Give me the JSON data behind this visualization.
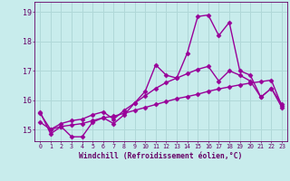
{
  "xlabel": "Windchill (Refroidissement éolien,°C)",
  "bg_color": "#c8ecec",
  "line_color": "#990099",
  "grid_color": "#b0d8d8",
  "text_color": "#660066",
  "x_data": [
    0,
    1,
    2,
    3,
    4,
    5,
    6,
    7,
    8,
    9,
    10,
    11,
    12,
    13,
    14,
    15,
    16,
    17,
    18,
    19,
    20,
    21,
    22,
    23
  ],
  "line1": [
    15.6,
    14.85,
    15.1,
    14.75,
    14.75,
    15.25,
    15.4,
    15.2,
    15.5,
    15.9,
    16.3,
    17.2,
    16.85,
    16.75,
    17.6,
    18.85,
    18.9,
    18.2,
    18.65,
    17.0,
    16.85,
    16.1,
    16.4,
    15.75
  ],
  "line2": [
    15.55,
    15.0,
    15.2,
    15.3,
    15.35,
    15.5,
    15.6,
    15.35,
    15.65,
    15.9,
    16.15,
    16.4,
    16.6,
    16.75,
    16.9,
    17.05,
    17.15,
    16.65,
    17.0,
    16.85,
    16.65,
    16.1,
    16.4,
    15.85
  ],
  "line3": [
    15.25,
    15.0,
    15.1,
    15.15,
    15.2,
    15.3,
    15.4,
    15.45,
    15.55,
    15.65,
    15.75,
    15.85,
    15.95,
    16.05,
    16.12,
    16.2,
    16.3,
    16.38,
    16.45,
    16.52,
    16.58,
    16.63,
    16.68,
    15.8
  ],
  "ylim": [
    14.6,
    19.35
  ],
  "xlim": [
    -0.5,
    23.5
  ],
  "yticks": [
    15,
    16,
    17,
    18,
    19
  ],
  "xticks": [
    0,
    1,
    2,
    3,
    4,
    5,
    6,
    7,
    8,
    9,
    10,
    11,
    12,
    13,
    14,
    15,
    16,
    17,
    18,
    19,
    20,
    21,
    22,
    23
  ],
  "markersize": 2.5,
  "linewidth": 1.0
}
